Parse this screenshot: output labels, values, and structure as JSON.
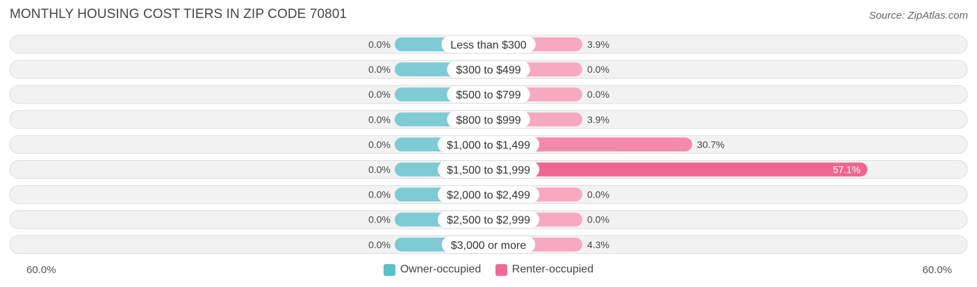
{
  "title": "MONTHLY HOUSING COST TIERS IN ZIP CODE 70801",
  "source": "Source: ZipAtlas.com",
  "axis": {
    "left_label": "60.0%",
    "right_label": "60.0%"
  },
  "legend": [
    {
      "label": "Owner-occupied",
      "color": "#5bbfcc"
    },
    {
      "label": "Renter-occupied",
      "color": "#f06a94"
    }
  ],
  "colors": {
    "owner_bar": "#7fcbd5",
    "renter_bar_light": "#f7a9c1",
    "renter_bar_mid": "#f48aab",
    "renter_bar_strong": "#ee6690"
  },
  "chart_data": {
    "type": "bar",
    "orientation": "diverging-horizontal",
    "title": "MONTHLY HOUSING COST TIERS IN ZIP CODE 70801",
    "categories": [
      "Less than $300",
      "$300 to $499",
      "$500 to $799",
      "$800 to $999",
      "$1,000 to $1,499",
      "$1,500 to $1,999",
      "$2,000 to $2,499",
      "$2,500 to $2,999",
      "$3,000 or more"
    ],
    "series": [
      {
        "name": "Owner-occupied",
        "values": [
          0.0,
          0.0,
          0.0,
          0.0,
          0.0,
          0.0,
          0.0,
          0.0,
          0.0
        ],
        "labels": [
          "0.0%",
          "0.0%",
          "0.0%",
          "0.0%",
          "0.0%",
          "0.0%",
          "0.0%",
          "0.0%",
          "0.0%"
        ]
      },
      {
        "name": "Renter-occupied",
        "values": [
          3.9,
          0.0,
          0.0,
          3.9,
          30.7,
          57.1,
          0.0,
          0.0,
          4.3
        ],
        "labels": [
          "3.9%",
          "0.0%",
          "0.0%",
          "3.9%",
          "30.7%",
          "57.1%",
          "0.0%",
          "0.0%",
          "4.3%"
        ]
      }
    ],
    "xlim": [
      -60,
      60
    ],
    "legend_position": "bottom-center"
  }
}
